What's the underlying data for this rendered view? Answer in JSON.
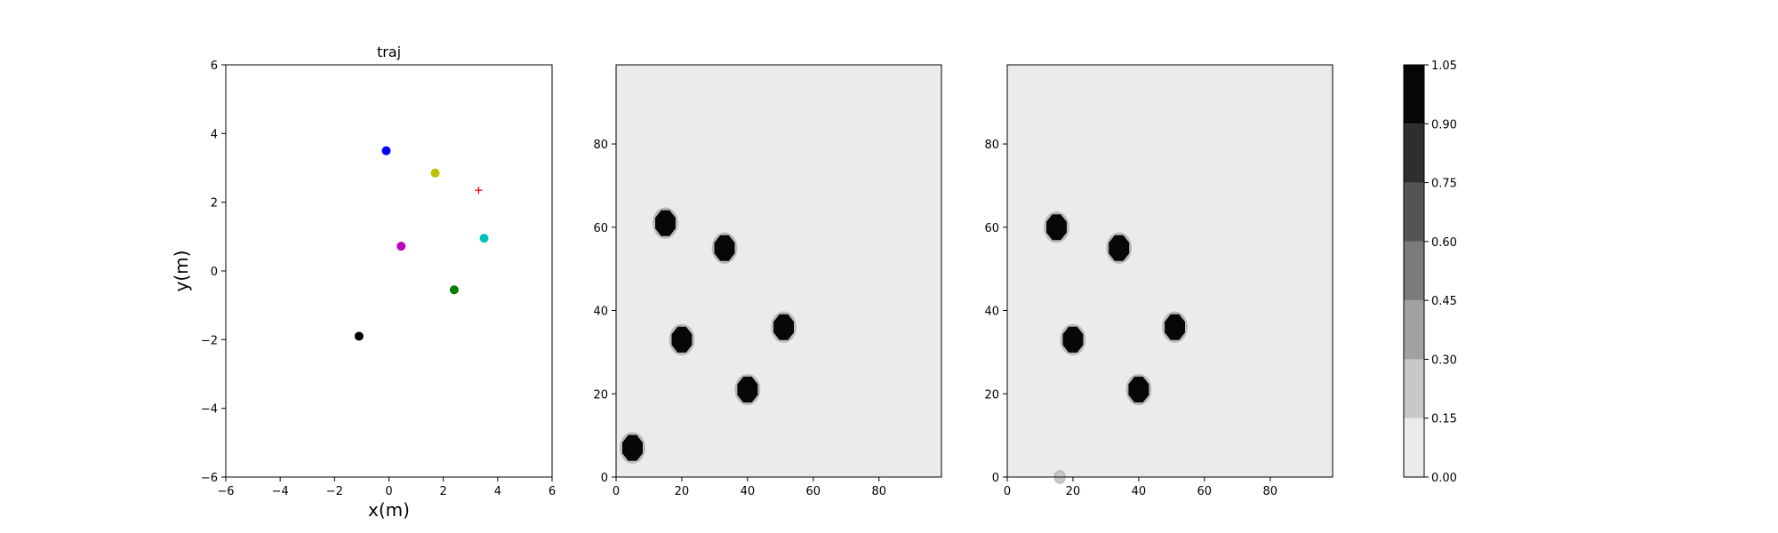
{
  "colors": {
    "background": "#ffffff",
    "axes": "#000000",
    "heatmap_background": "#ebebeb",
    "blob": "#0a0a0a",
    "marker_blue": "#0000ff",
    "marker_yellow": "#bfbf00",
    "marker_magenta": "#bf00bf",
    "marker_cyan": "#00bfbf",
    "marker_green": "#008000",
    "marker_black": "#000000",
    "marker_red": "#ff0000"
  },
  "chart_data": [
    {
      "type": "scatter",
      "title": "traj",
      "xlabel": "x(m)",
      "ylabel": "y(m)",
      "xlim": [
        -6,
        6
      ],
      "ylim": [
        -6,
        6
      ],
      "xticks": [
        "−6",
        "−4",
        "−2",
        "0",
        "2",
        "4",
        "6"
      ],
      "yticks": [
        "−6",
        "−4",
        "−2",
        "0",
        "2",
        "4",
        "6"
      ],
      "grid": false,
      "points": [
        {
          "x": -0.1,
          "y": 3.5,
          "color": "#0000ff",
          "marker": "circle"
        },
        {
          "x": 1.7,
          "y": 2.85,
          "color": "#bfbf00",
          "marker": "circle"
        },
        {
          "x": 0.45,
          "y": 0.72,
          "color": "#bf00bf",
          "marker": "circle"
        },
        {
          "x": 3.5,
          "y": 0.95,
          "color": "#00bfbf",
          "marker": "circle"
        },
        {
          "x": 2.4,
          "y": -0.55,
          "color": "#008000",
          "marker": "circle"
        },
        {
          "x": -1.1,
          "y": -1.9,
          "color": "#000000",
          "marker": "circle"
        },
        {
          "x": 3.3,
          "y": 2.35,
          "color": "#ff0000",
          "marker": "plus"
        }
      ]
    },
    {
      "type": "heatmap",
      "title": "",
      "xlabel": "",
      "ylabel": "",
      "xlim": [
        0,
        99
      ],
      "ylim": [
        0,
        99
      ],
      "xticks": [
        "0",
        "20",
        "40",
        "60",
        "80"
      ],
      "yticks": [
        "0",
        "20",
        "40",
        "60",
        "80"
      ],
      "background_value": 0.05,
      "blobs": [
        {
          "x": 15,
          "y": 61,
          "r": 3.2,
          "value": 1.0
        },
        {
          "x": 33,
          "y": 55,
          "r": 3.2,
          "value": 1.0
        },
        {
          "x": 20,
          "y": 33,
          "r": 3.2,
          "value": 1.0
        },
        {
          "x": 51,
          "y": 36,
          "r": 3.2,
          "value": 1.0
        },
        {
          "x": 40,
          "y": 21,
          "r": 3.2,
          "value": 1.0
        },
        {
          "x": 5,
          "y": 7,
          "r": 3.2,
          "value": 1.0
        }
      ]
    },
    {
      "type": "heatmap",
      "title": "",
      "xlabel": "",
      "ylabel": "",
      "xlim": [
        0,
        99
      ],
      "ylim": [
        0,
        99
      ],
      "xticks": [
        "0",
        "20",
        "40",
        "60",
        "80"
      ],
      "yticks": [
        "0",
        "20",
        "40",
        "60",
        "80"
      ],
      "background_value": 0.05,
      "blobs": [
        {
          "x": 15,
          "y": 60,
          "r": 3.2,
          "value": 1.0
        },
        {
          "x": 34,
          "y": 55,
          "r": 3.2,
          "value": 1.0
        },
        {
          "x": 20,
          "y": 33,
          "r": 3.2,
          "value": 1.0
        },
        {
          "x": 51,
          "y": 36,
          "r": 3.2,
          "value": 1.0
        },
        {
          "x": 40,
          "y": 21,
          "r": 3.2,
          "value": 1.0
        },
        {
          "x": 16,
          "y": 0,
          "r": 1.2,
          "value": 0.2
        }
      ]
    },
    {
      "type": "colorbar",
      "levels": [
        0.0,
        0.15,
        0.3,
        0.45,
        0.6,
        0.75,
        0.9,
        1.05
      ],
      "tick_labels": [
        "0.00",
        "0.15",
        "0.30",
        "0.45",
        "0.60",
        "0.75",
        "0.90",
        "1.05"
      ],
      "level_colors": [
        "#ebebeb",
        "#c8c8c8",
        "#a1a1a1",
        "#7b7b7b",
        "#545454",
        "#2e2e2e",
        "#070707"
      ]
    }
  ]
}
